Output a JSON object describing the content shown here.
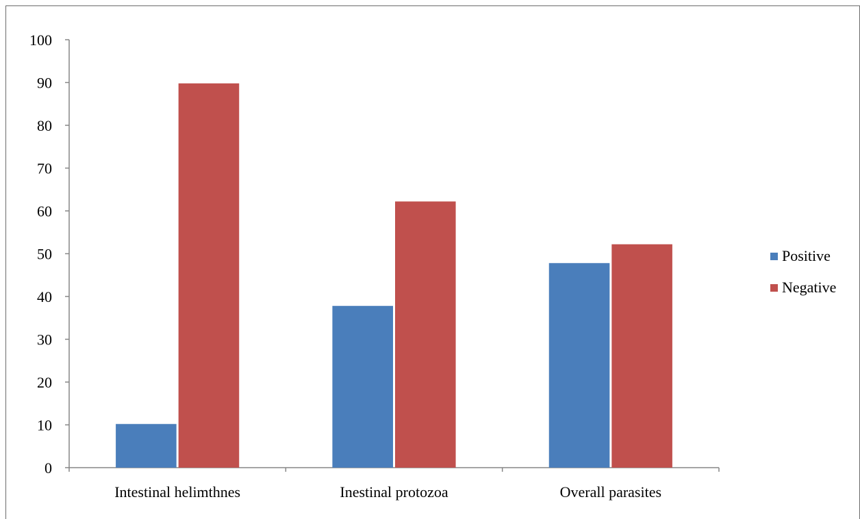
{
  "chart_data": {
    "type": "bar",
    "categories": [
      "Intestinal helimthnes",
      "Inestinal protozoa",
      "Overall parasites"
    ],
    "series": [
      {
        "name": "Positive",
        "values": [
          10.2,
          37.8,
          47.8
        ],
        "color": "#4a7ebb"
      },
      {
        "name": "Negative",
        "values": [
          89.8,
          62.2,
          52.2
        ],
        "color": "#c0504d"
      }
    ],
    "ylim": [
      0,
      100
    ],
    "yticks": [
      0,
      10,
      20,
      30,
      40,
      50,
      60,
      70,
      80,
      90,
      100
    ],
    "grid": false,
    "legend_position": "right"
  }
}
